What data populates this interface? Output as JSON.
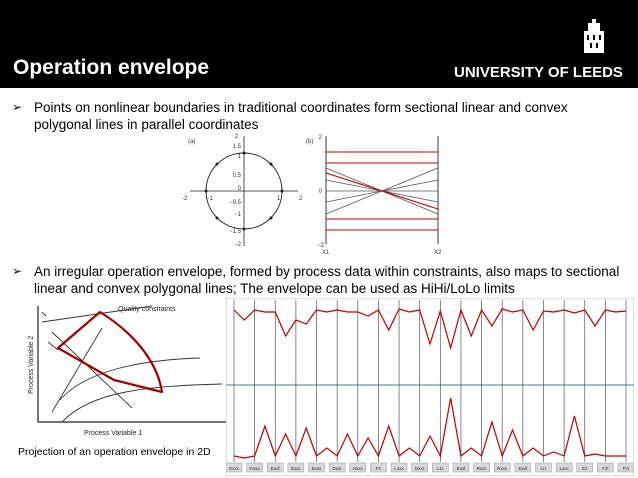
{
  "slide": {
    "title": "Operation envelope",
    "university": "UNIVERSITY OF LEEDS",
    "bullet1": "Points on nonlinear boundaries in traditional coordinates form sectional linear and convex polygonal lines in parallel coordinates",
    "bullet2": "An irregular operation envelope, formed by process data within constraints, also maps to sectional linear and convex polygonal lines; The envelope can be used as HiHi/LoLo limits",
    "caption": "Projection of an operation envelope in 2D"
  },
  "icons": {
    "bullet": "arrow-bullet-icon",
    "crest": "university-crest-icon"
  },
  "figure_a": {
    "label": "(a)",
    "y_ticks": [
      "2",
      "1.5",
      "1",
      "0.5",
      "0",
      "−0.5",
      "−1",
      "−1.5",
      "−2"
    ],
    "x_ticks": [
      "-2",
      "−1",
      "1",
      "2"
    ]
  },
  "figure_b": {
    "label": "(b)",
    "y_ticks": [
      "2",
      "0",
      "−2"
    ],
    "axis_labels": [
      "X1",
      "X2"
    ]
  },
  "projection": {
    "quality_label": "Quality constraints",
    "ylabel": "Process Variable 2",
    "xlabel": "Process Variable 1"
  },
  "parallel_plot": {
    "axis_labels": [
      "Exxx",
      "Fwxx",
      "Exxf",
      "Exxc",
      "Exxx",
      "Dxxr",
      "Hxxx",
      "F1",
      "L1xx",
      "Dxxr",
      "L1r",
      "Exxf",
      "Rxxc",
      "Rxxx",
      "Exxf",
      "Lrr",
      "Lxxc",
      "Ez",
      "Fzf",
      "Fzr"
    ]
  },
  "colors": {
    "header_bg": "#000000",
    "envelope_red": "#c00000",
    "grey_line": "#555555",
    "teal_line": "#5a9ea6"
  }
}
